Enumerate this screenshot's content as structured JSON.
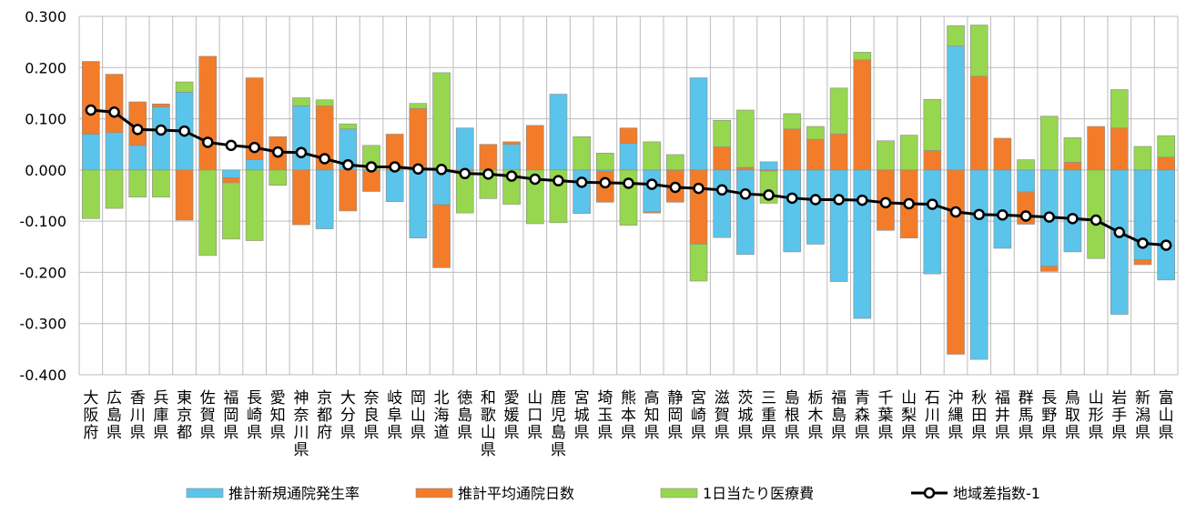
{
  "chart_data": {
    "type": "bar",
    "stacked": true,
    "ylim": [
      -0.4,
      0.3
    ],
    "yticks": [
      "0.300",
      "0.200",
      "0.100",
      "0.000",
      "-0.100",
      "-0.200",
      "-0.300",
      "-0.400"
    ],
    "ytick_values": [
      0.3,
      0.2,
      0.1,
      0.0,
      -0.1,
      -0.2,
      -0.3,
      -0.4
    ],
    "grid": true,
    "legend_position": "bottom",
    "categories": [
      "大阪府",
      "広島県",
      "香川県",
      "兵庫県",
      "東京都",
      "佐賀県",
      "福岡県",
      "長崎県",
      "愛知県",
      "神奈川県",
      "京都府",
      "大分県",
      "奈良県",
      "岐阜県",
      "岡山県",
      "北海道",
      "徳島県",
      "和歌山県",
      "愛媛県",
      "山口県",
      "鹿児島県",
      "宮城県",
      "埼玉県",
      "熊本県",
      "高知県",
      "静岡県",
      "宮崎県",
      "滋賀県",
      "茨城県",
      "三重県",
      "島根県",
      "栃木県",
      "福島県",
      "青森県",
      "千葉県",
      "山梨県",
      "石川県",
      "沖縄県",
      "秋田県",
      "福井県",
      "群馬県",
      "長野県",
      "鳥取県",
      "山形県",
      "岩手県",
      "新潟県",
      "富山県"
    ],
    "series": [
      {
        "name": "推計新規通院発生率",
        "color": "#5bc4ea",
        "kind": "bar",
        "values": [
          0.07,
          0.073,
          0.048,
          0.123,
          0.152,
          0.0,
          -0.015,
          0.02,
          0.0,
          0.125,
          -0.115,
          0.08,
          -0.002,
          -0.062,
          -0.133,
          -0.068,
          0.082,
          0.0,
          0.05,
          0.0,
          0.148,
          -0.085,
          -0.003,
          0.052,
          -0.082,
          -0.001,
          0.18,
          -0.132,
          -0.165,
          0.016,
          -0.16,
          -0.145,
          -0.218,
          -0.29,
          0.0,
          0.0,
          -0.203,
          0.242,
          -0.37,
          -0.153,
          -0.043,
          -0.188,
          -0.16,
          0.0,
          -0.282,
          -0.175,
          -0.215
        ]
      },
      {
        "name": "推計平均通院日数",
        "color": "#f27c2a",
        "kind": "bar",
        "values": [
          0.142,
          0.114,
          0.085,
          0.006,
          -0.098,
          0.222,
          -0.01,
          0.16,
          0.065,
          -0.107,
          0.125,
          -0.08,
          -0.04,
          0.07,
          0.12,
          -0.123,
          -0.002,
          0.05,
          0.005,
          0.087,
          0.0,
          0.0,
          -0.06,
          0.03,
          -0.002,
          -0.062,
          -0.145,
          0.045,
          0.005,
          -0.002,
          0.08,
          0.06,
          0.07,
          0.215,
          -0.118,
          -0.133,
          0.038,
          -0.36,
          0.183,
          0.062,
          -0.063,
          -0.01,
          0.015,
          0.085,
          0.082,
          -0.01,
          0.025
        ]
      },
      {
        "name": "1日当たり医療費",
        "color": "#97d64f",
        "kind": "bar",
        "values": [
          -0.095,
          -0.075,
          -0.053,
          -0.053,
          0.02,
          -0.167,
          -0.11,
          -0.138,
          -0.03,
          0.016,
          0.012,
          0.01,
          0.048,
          0.0,
          0.01,
          0.19,
          -0.082,
          -0.056,
          -0.067,
          -0.105,
          -0.103,
          0.065,
          0.033,
          -0.108,
          0.055,
          0.03,
          -0.072,
          0.052,
          0.112,
          -0.063,
          0.03,
          0.025,
          0.09,
          0.015,
          0.057,
          0.068,
          0.1,
          0.04,
          0.1,
          0.0,
          0.02,
          0.105,
          0.048,
          -0.173,
          0.075,
          0.046,
          0.042
        ]
      },
      {
        "name": "地域差指数-1",
        "color": "#000000",
        "kind": "line",
        "values": [
          0.117,
          0.113,
          0.079,
          0.078,
          0.076,
          0.054,
          0.048,
          0.044,
          0.035,
          0.034,
          0.022,
          0.01,
          0.006,
          0.006,
          0.002,
          0.001,
          -0.007,
          -0.008,
          -0.012,
          -0.018,
          -0.021,
          -0.024,
          -0.025,
          -0.026,
          -0.028,
          -0.034,
          -0.036,
          -0.039,
          -0.047,
          -0.049,
          -0.055,
          -0.058,
          -0.058,
          -0.059,
          -0.064,
          -0.066,
          -0.067,
          -0.082,
          -0.087,
          -0.088,
          -0.09,
          -0.092,
          -0.095,
          -0.098,
          -0.122,
          -0.143,
          -0.147
        ]
      }
    ]
  }
}
